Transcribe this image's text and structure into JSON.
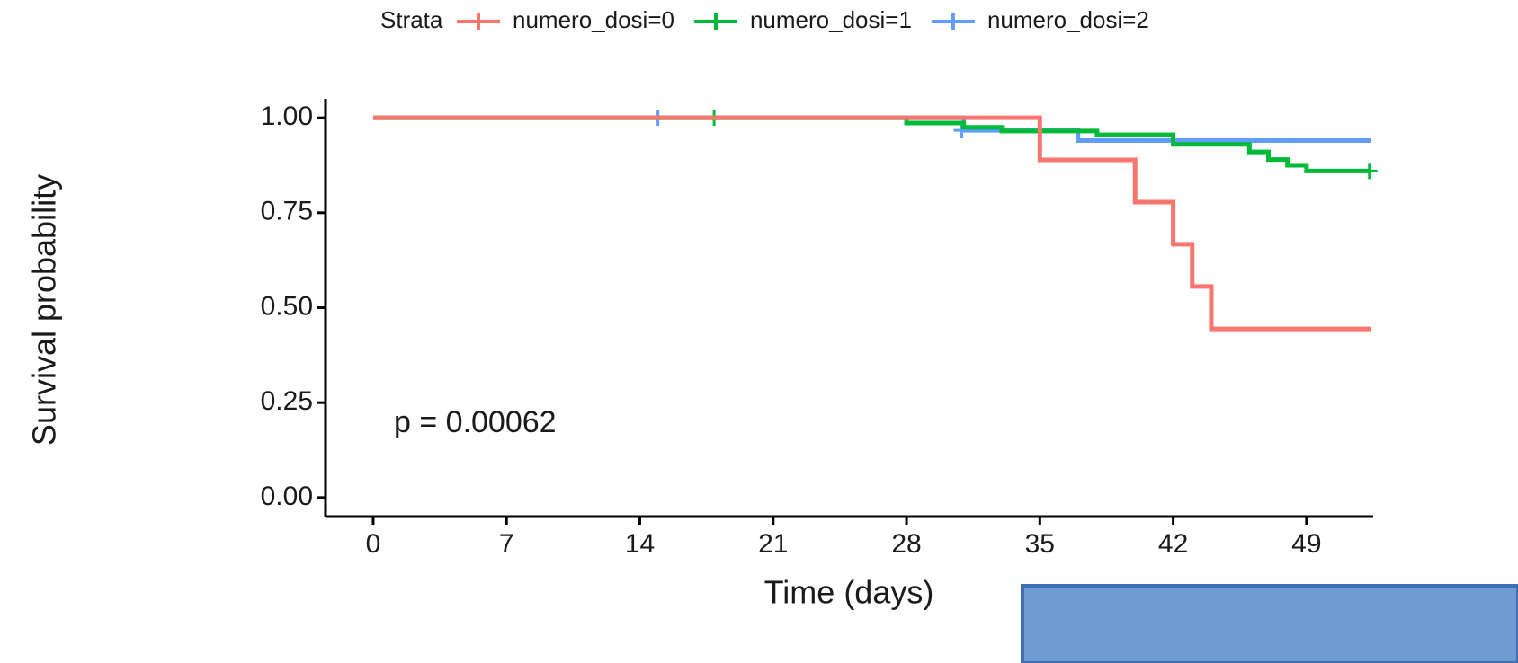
{
  "chart_data": {
    "type": "step",
    "ylabel": "Survival probability",
    "xlabel": "Time (days)",
    "annotation": "p = 0.00062",
    "legend_title": "Strata",
    "legend_position": "top",
    "xlim": [
      -2.5,
      52.5
    ],
    "ylim": [
      -0.05,
      1.05
    ],
    "xticks": [
      0,
      7,
      14,
      21,
      28,
      35,
      42,
      49
    ],
    "yticks": [
      {
        "value": 0,
        "label": "0.00"
      },
      {
        "value": 0.25,
        "label": "0.25"
      },
      {
        "value": 0.5,
        "label": "0.50"
      },
      {
        "value": 0.75,
        "label": "0.75"
      },
      {
        "value": 1,
        "label": "1.00"
      }
    ],
    "series": [
      {
        "name": "numero_dosi=0",
        "color": "#F8766D",
        "x": [
          0,
          35,
          40,
          42,
          43,
          44,
          52.4
        ],
        "values": [
          1,
          0.889,
          0.778,
          0.667,
          0.556,
          0.444,
          0.444
        ],
        "censor_x": [],
        "censor_values": []
      },
      {
        "name": "numero_dosi=1",
        "color": "#00BA38",
        "x": [
          0,
          28,
          31,
          33,
          38,
          42,
          46,
          47,
          48,
          49,
          52.3
        ],
        "values": [
          1,
          0.986,
          0.975,
          0.965,
          0.955,
          0.93,
          0.91,
          0.89,
          0.875,
          0.86,
          0.86
        ],
        "censor_x": [
          17.9,
          52.3
        ],
        "censor_values": [
          1,
          0.86
        ]
      },
      {
        "name": "numero_dosi=2",
        "color": "#619CFF",
        "x": [
          0,
          31,
          37,
          52.4
        ],
        "values": [
          1,
          0.967,
          0.94,
          0.94
        ],
        "censor_x": [
          14.95,
          30.9
        ],
        "censor_values": [
          1,
          0.967
        ]
      }
    ]
  }
}
